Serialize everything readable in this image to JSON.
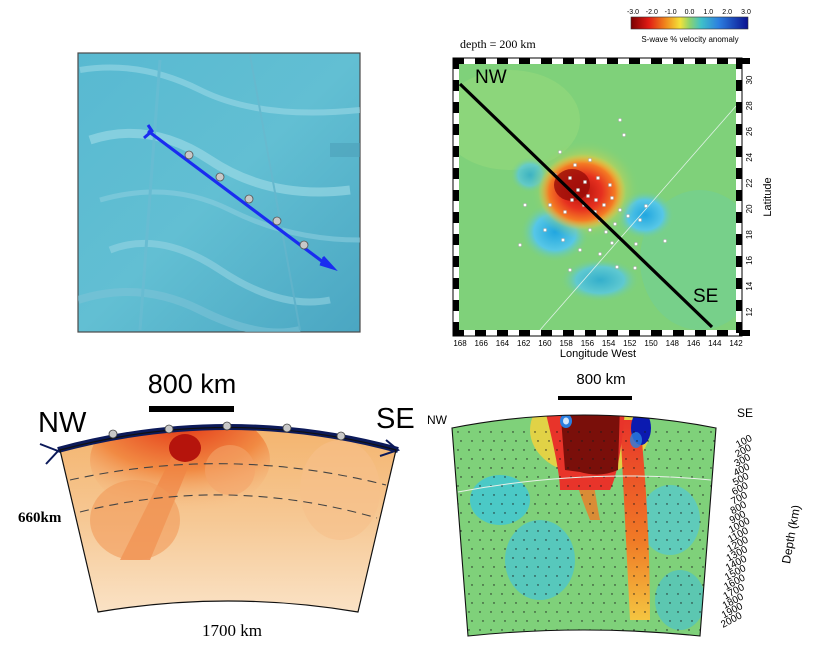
{
  "bathymetry_panel": {
    "track_points": 5
  },
  "tomo_map": {
    "depth_label": "depth = 200 km",
    "nw_label": "NW",
    "se_label": "SE",
    "colorbar": {
      "title": "S-wave % velocity anomaly",
      "ticks": [
        "-3.0",
        "-2.0",
        "-1.0",
        "0.0",
        "1.0",
        "2.0",
        "3.0"
      ]
    },
    "x_axis": {
      "title": "Longitude West",
      "ticks": [
        "168",
        "166",
        "164",
        "162",
        "160",
        "158",
        "156",
        "154",
        "152",
        "150",
        "148",
        "146",
        "144",
        "142"
      ]
    },
    "y_axis": {
      "title": "Latitude",
      "ticks": [
        "12",
        "14",
        "16",
        "18",
        "20",
        "22",
        "24",
        "26",
        "28",
        "30"
      ]
    }
  },
  "cross_section_left": {
    "scale_label": "800 km",
    "nw_label": "NW",
    "se_label": "SE",
    "depth_label": "660km",
    "width_label": "1700 km"
  },
  "cross_section_right": {
    "scale_label": "800 km",
    "nw_label": "NW",
    "se_label": "SE",
    "depth_axis_title": "Depth (km)",
    "depth_ticks": [
      "100",
      "200",
      "300",
      "400",
      "500",
      "600",
      "700",
      "800",
      "900",
      "1000",
      "1100",
      "1200",
      "1300",
      "1400",
      "1500",
      "1600",
      "1700",
      "1800",
      "1900",
      "2000"
    ]
  },
  "colors": {
    "ocean": "#5bb4cc",
    "track": "#1a2cf0",
    "map_bg": "#7fd17a",
    "plume_red": "#e8342a",
    "plume_dark": "#7a0f0a"
  }
}
